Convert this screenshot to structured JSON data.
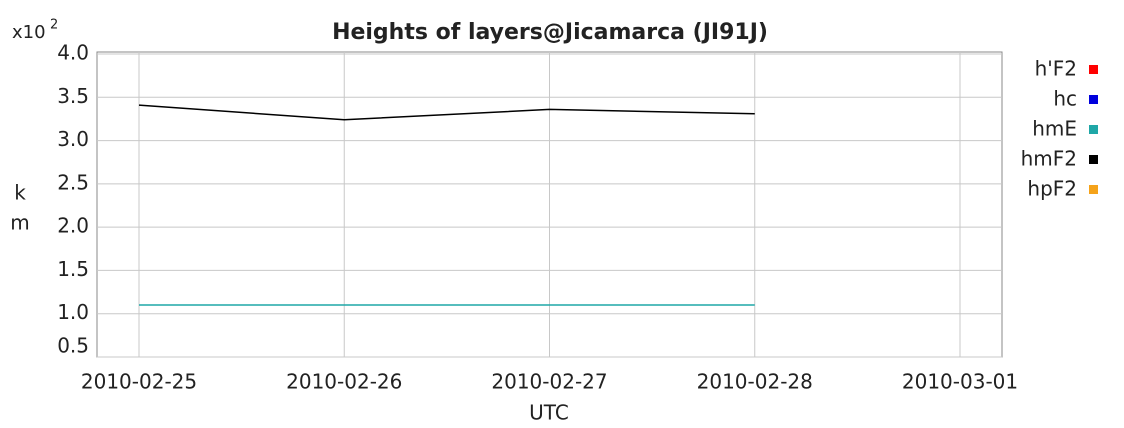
{
  "chart_data": {
    "type": "line",
    "title": "Heights of layers@Jicamarca (JI91J)",
    "y_multiplier": {
      "base": "x10",
      "exponent": "2"
    },
    "ylabel": [
      "k",
      "m"
    ],
    "xlabel": "UTC",
    "x": [
      "2010-02-25",
      "2010-02-26",
      "2010-02-27",
      "2010-02-28"
    ],
    "xticks": [
      "2010-02-25",
      "2010-02-26",
      "2010-02-27",
      "2010-02-28",
      "2010-03-01"
    ],
    "ylim": [
      0.5,
      4.0
    ],
    "yticks": [
      {
        "value": 0.5,
        "label": "0.5"
      },
      {
        "value": 1,
        "label": "1.0"
      },
      {
        "value": 1.5,
        "label": "1.5"
      },
      {
        "value": 2,
        "label": "2.0"
      },
      {
        "value": 2.5,
        "label": "2.5"
      },
      {
        "value": 3,
        "label": "3.0"
      },
      {
        "value": 3.5,
        "label": "3.5"
      },
      {
        "value": 4,
        "label": "4.0"
      }
    ],
    "grid": true,
    "legend": "right",
    "series": [
      {
        "name": "h'F2",
        "color": "#ff0000",
        "values": [
          null,
          null,
          null,
          null
        ]
      },
      {
        "name": "hc",
        "color": "#0000dd",
        "values": [
          null,
          null,
          null,
          null
        ]
      },
      {
        "name": "hmE",
        "color": "#1fa7a7",
        "values": [
          1.1,
          1.1,
          1.1,
          1.1
        ]
      },
      {
        "name": "hmF2",
        "color": "#000000",
        "values": [
          3.41,
          3.24,
          3.36,
          3.31
        ]
      },
      {
        "name": "hpF2",
        "color": "#f5a31a",
        "values": [
          null,
          null,
          null,
          null
        ]
      }
    ]
  }
}
